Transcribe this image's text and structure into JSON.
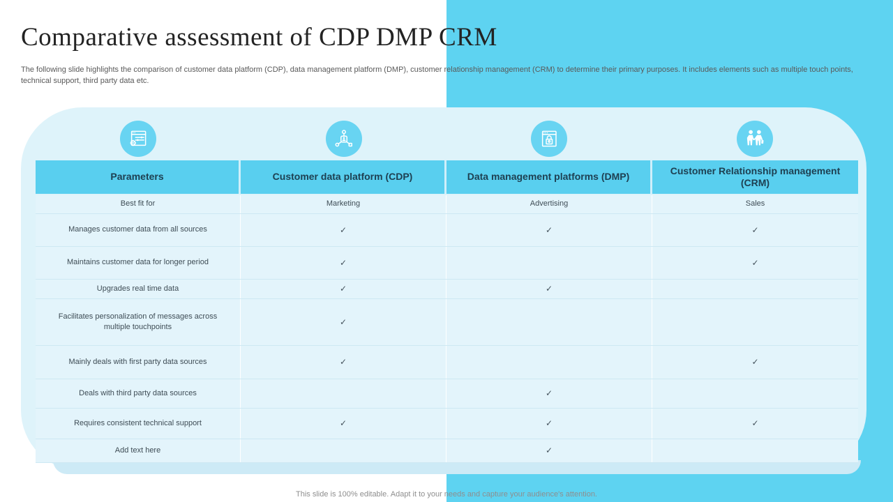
{
  "slide": {
    "title": "Comparative assessment of CDP DMP CRM",
    "subtitle": "The following slide highlights the comparison of customer data platform (CDP), data management platform (DMP), customer relationship management (CRM) to determine their primary purposes. It includes elements such as multiple touch points, technical support, third party data etc.",
    "footer": "This slide is 100% editable. Adapt it to your needs and capture your audience's attention."
  },
  "colors": {
    "accent_blue": "#5ED3F1",
    "icon_blue": "#68D4F2",
    "header_blue": "#59CFEF",
    "card_bg": "#DEF3FA",
    "card_edge": "#CDEAF6",
    "row_bg": "#E3F4FB",
    "title_text": "#232323",
    "subtitle_text": "#595959",
    "header_text": "#1E4052",
    "body_text": "#3E4C55",
    "footer_text": "#8E8E8E"
  },
  "table": {
    "check_glyph": "✓",
    "columns": [
      {
        "label": "Parameters",
        "icon": "settings-panel-icon"
      },
      {
        "label": "Customer data platform (CDP)",
        "icon": "data-network-icon"
      },
      {
        "label": "Data management platforms (DMP)",
        "icon": "secure-window-icon"
      },
      {
        "label": "Customer Relationship management (CRM)",
        "icon": "partnership-icon"
      }
    ],
    "rows": [
      {
        "parameter": "Best fit for",
        "cells": [
          "Marketing",
          "Advertising",
          "Sales"
        ]
      },
      {
        "parameter": "Manages customer data from all sources",
        "cells": [
          true,
          true,
          true
        ]
      },
      {
        "parameter": "Maintains customer data for longer period",
        "cells": [
          true,
          false,
          true
        ]
      },
      {
        "parameter": "Upgrades real time data",
        "cells": [
          true,
          true,
          false
        ]
      },
      {
        "parameter": "Facilitates personalization of messages across multiple touchpoints",
        "cells": [
          true,
          false,
          false
        ]
      },
      {
        "parameter": "Mainly deals with first party data sources",
        "cells": [
          true,
          false,
          true
        ]
      },
      {
        "parameter": "Deals with third party data sources",
        "cells": [
          false,
          true,
          false
        ]
      },
      {
        "parameter": "Requires consistent technical support",
        "cells": [
          true,
          true,
          true
        ]
      },
      {
        "parameter": "Add text here",
        "cells": [
          false,
          true,
          false
        ]
      }
    ]
  }
}
